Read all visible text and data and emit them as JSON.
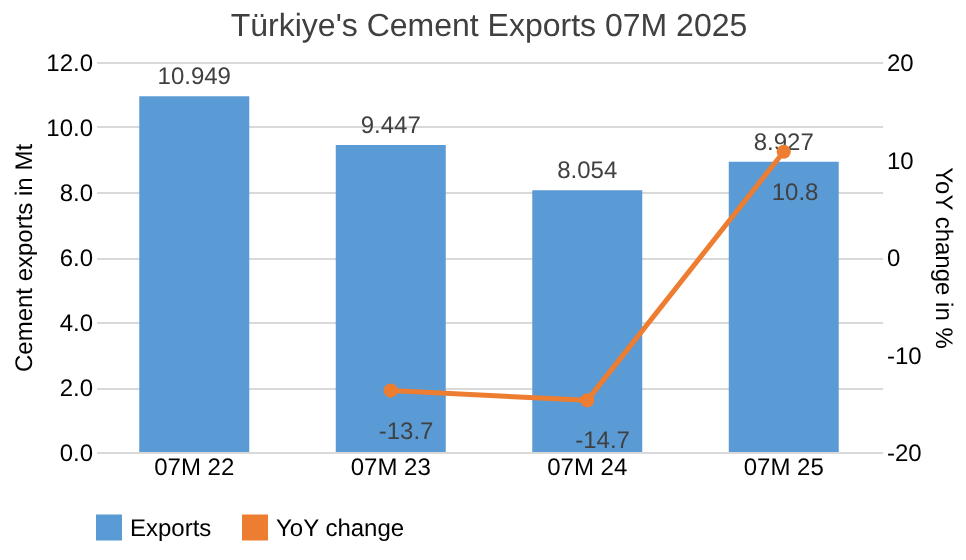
{
  "chart_data": {
    "type": "bar",
    "title": "Türkiye's Cement  Exports 07M 2025",
    "ylabel": "Cement exports in Mt",
    "y2label": "YoY change in %",
    "categories": [
      "07M 22",
      "07M 23",
      "07M 24",
      "07M 25"
    ],
    "series": [
      {
        "name": "Exports",
        "color": "#5b9bd5",
        "values": [
          10.949,
          9.447,
          8.054,
          8.927
        ]
      },
      {
        "name": "YoY change",
        "type": "line",
        "axis": "y2",
        "color": "#ed7d31",
        "values": [
          null,
          -13.7,
          -14.7,
          10.8
        ]
      }
    ],
    "ylim": [
      0,
      12
    ],
    "yticks": [
      {
        "value": 0,
        "label": "0.0"
      },
      {
        "value": 2,
        "label": "2.0"
      },
      {
        "value": 4,
        "label": "4.0"
      },
      {
        "value": 6,
        "label": "6.0"
      },
      {
        "value": 8,
        "label": "8.0"
      },
      {
        "value": 10,
        "label": "10.0"
      },
      {
        "value": 12,
        "label": "12.0"
      }
    ],
    "y2lim": [
      -20,
      20
    ],
    "y2ticks": [
      -20,
      -10,
      0,
      10,
      20
    ],
    "data_labels": true,
    "grid": "y",
    "legend": "bottom",
    "marker": "circle",
    "line_style": "solid"
  }
}
